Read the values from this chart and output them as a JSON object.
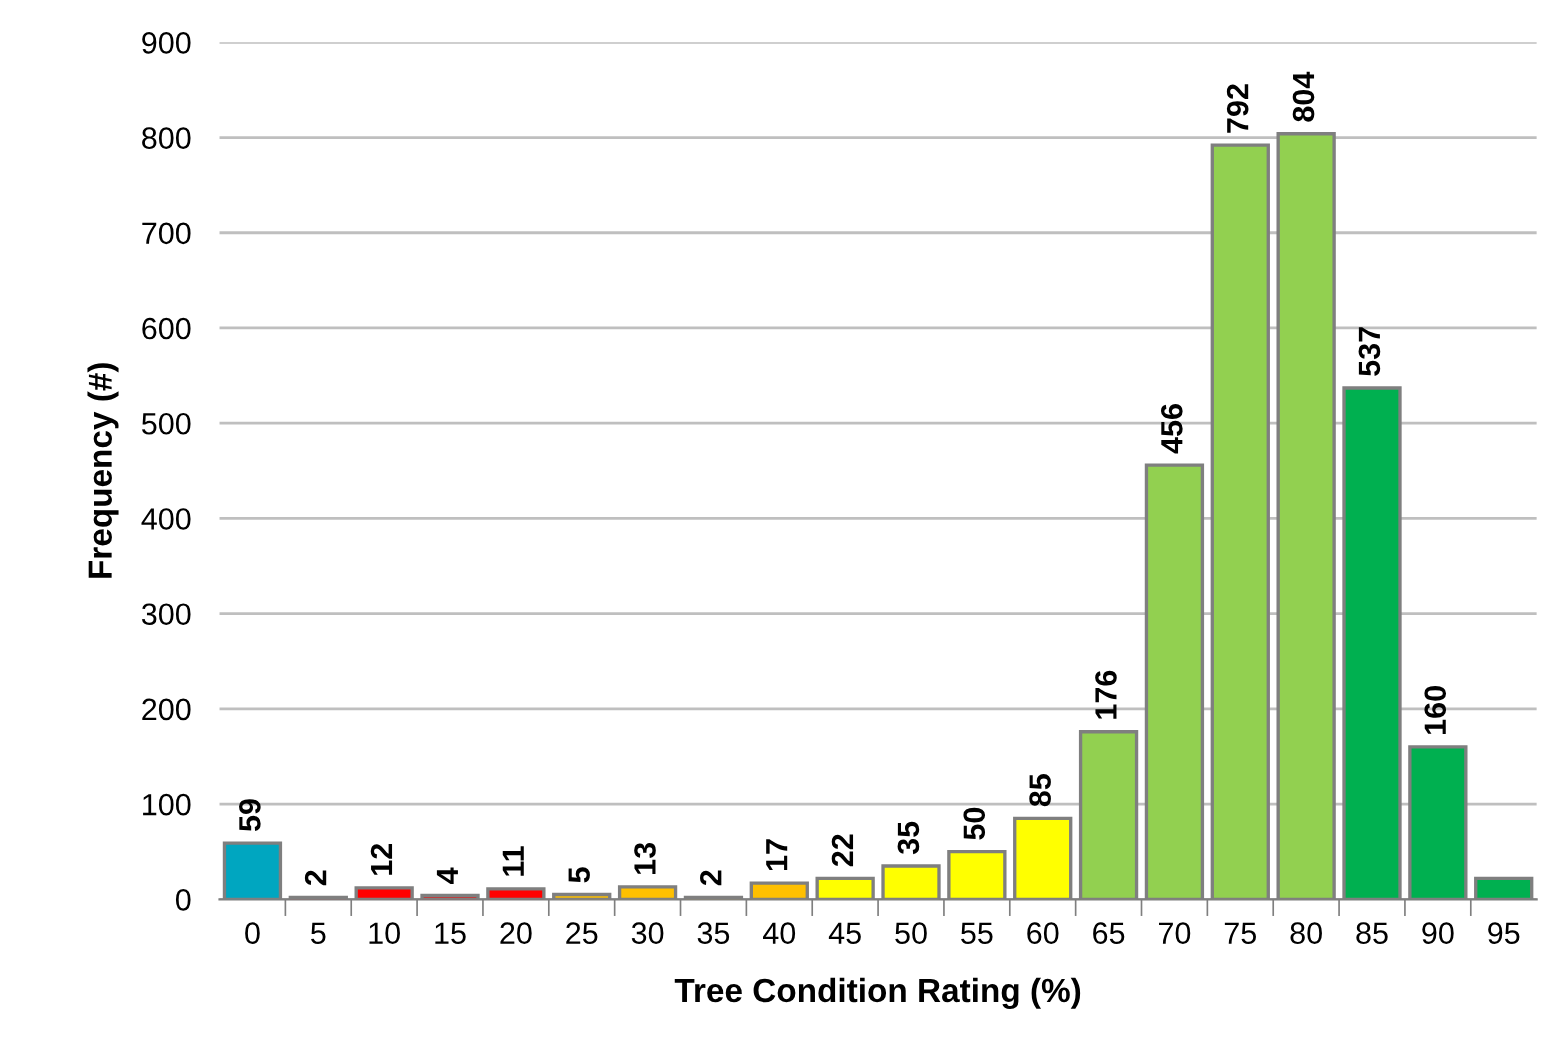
{
  "chart_data": {
    "type": "bar",
    "xlabel": "Tree Condition Rating (%)",
    "ylabel": "Frequency (#)",
    "categories": [
      "0",
      "5",
      "10",
      "15",
      "20",
      "25",
      "30",
      "35",
      "40",
      "45",
      "50",
      "55",
      "60",
      "65",
      "70",
      "75",
      "80",
      "85",
      "90",
      "95"
    ],
    "values": [
      59,
      2,
      12,
      4,
      11,
      5,
      13,
      2,
      17,
      22,
      35,
      50,
      85,
      176,
      456,
      792,
      804,
      537,
      160,
      22
    ],
    "colors": [
      "#00a6c0",
      "#ff0000",
      "#ff0000",
      "#ff0000",
      "#ff0000",
      "#ffc000",
      "#ffc000",
      "#ffc000",
      "#ffc000",
      "#ffff00",
      "#ffff00",
      "#ffff00",
      "#ffff00",
      "#92d050",
      "#92d050",
      "#92d050",
      "#92d050",
      "#00b050",
      "#00b050",
      "#00b050"
    ],
    "value_labels": [
      "59",
      "2",
      "12",
      "4",
      "11",
      "5",
      "13",
      "2",
      "17",
      "22",
      "35",
      "50",
      "85",
      "176",
      "456",
      "792",
      "804",
      "537",
      "160",
      null
    ],
    "ylim": [
      0,
      900
    ],
    "yticks": [
      0,
      100,
      200,
      300,
      400,
      500,
      600,
      700,
      800,
      900
    ],
    "grid": "y"
  }
}
